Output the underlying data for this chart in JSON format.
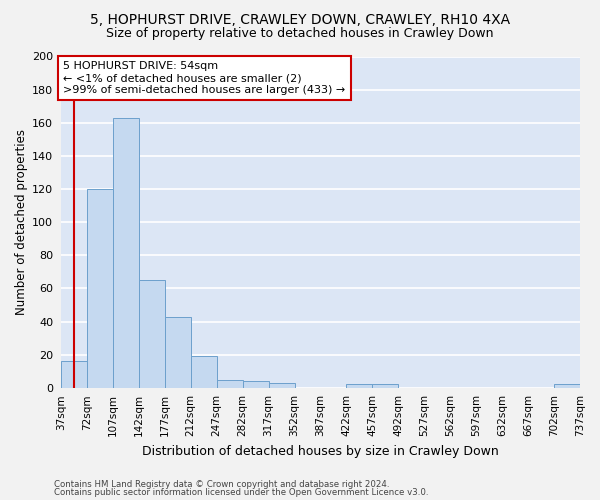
{
  "title": "5, HOPHURST DRIVE, CRAWLEY DOWN, CRAWLEY, RH10 4XA",
  "subtitle": "Size of property relative to detached houses in Crawley Down",
  "xlabel": "Distribution of detached houses by size in Crawley Down",
  "ylabel": "Number of detached properties",
  "bar_color": "#c5d9f0",
  "bar_edge_color": "#6ca0cc",
  "bg_color": "#dce6f5",
  "grid_color": "#ffffff",
  "fig_bg_color": "#f2f2f2",
  "annotation_line_color": "#cc0000",
  "bin_edges": [
    37,
    72,
    107,
    142,
    177,
    212,
    247,
    282,
    317,
    352,
    387,
    422,
    457,
    492,
    527,
    562,
    597,
    632,
    667,
    702,
    737
  ],
  "bin_labels": [
    "37sqm",
    "72sqm",
    "107sqm",
    "142sqm",
    "177sqm",
    "212sqm",
    "247sqm",
    "282sqm",
    "317sqm",
    "352sqm",
    "387sqm",
    "422sqm",
    "457sqm",
    "492sqm",
    "527sqm",
    "562sqm",
    "597sqm",
    "632sqm",
    "667sqm",
    "702sqm",
    "737sqm"
  ],
  "counts": [
    16,
    120,
    163,
    65,
    43,
    19,
    5,
    4,
    3,
    0,
    0,
    2,
    2,
    0,
    0,
    0,
    0,
    0,
    0,
    2
  ],
  "property_sqm": 54,
  "annotation_box_text": "5 HOPHURST DRIVE: 54sqm\n← <1% of detached houses are smaller (2)\n>99% of semi-detached houses are larger (433) →",
  "ylim": [
    0,
    200
  ],
  "yticks": [
    0,
    20,
    40,
    60,
    80,
    100,
    120,
    140,
    160,
    180,
    200
  ],
  "title_fontsize": 10,
  "subtitle_fontsize": 9,
  "annotation_fontsize": 8,
  "footer_line1": "Contains HM Land Registry data © Crown copyright and database right 2024.",
  "footer_line2": "Contains public sector information licensed under the Open Government Licence v3.0."
}
